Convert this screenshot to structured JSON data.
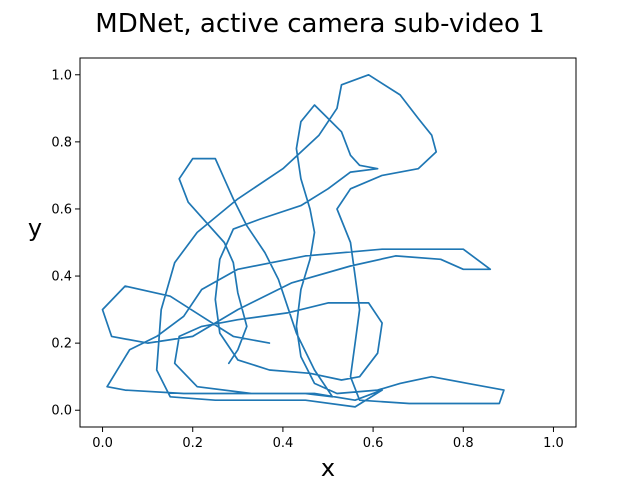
{
  "chart_data": {
    "type": "line",
    "title": "MDNet, active camera sub-video 1",
    "xlabel": "x",
    "ylabel": "y",
    "xlim": [
      -0.05,
      1.05
    ],
    "ylim": [
      -0.05,
      1.05
    ],
    "xticks": [
      "0.0",
      "0.2",
      "0.4",
      "0.6",
      "0.8",
      "1.0"
    ],
    "yticks": [
      "0.0",
      "0.2",
      "0.4",
      "0.6",
      "0.8",
      "1.0"
    ],
    "grid": false,
    "legend": "none",
    "series": [
      {
        "color": "#1f77b4",
        "points": [
          [
            0.37,
            0.2
          ],
          [
            0.29,
            0.22
          ],
          [
            0.22,
            0.28
          ],
          [
            0.15,
            0.34
          ],
          [
            0.05,
            0.37
          ],
          [
            0.0,
            0.3
          ],
          [
            0.02,
            0.22
          ],
          [
            0.1,
            0.2
          ],
          [
            0.2,
            0.22
          ],
          [
            0.3,
            0.3
          ],
          [
            0.42,
            0.38
          ],
          [
            0.55,
            0.43
          ],
          [
            0.65,
            0.46
          ],
          [
            0.75,
            0.45
          ],
          [
            0.8,
            0.42
          ],
          [
            0.86,
            0.42
          ],
          [
            0.8,
            0.48
          ],
          [
            0.62,
            0.48
          ],
          [
            0.45,
            0.46
          ],
          [
            0.3,
            0.42
          ],
          [
            0.22,
            0.36
          ],
          [
            0.18,
            0.28
          ],
          [
            0.12,
            0.22
          ],
          [
            0.06,
            0.18
          ],
          [
            0.01,
            0.07
          ],
          [
            0.05,
            0.06
          ],
          [
            0.18,
            0.05
          ],
          [
            0.33,
            0.05
          ],
          [
            0.47,
            0.05
          ],
          [
            0.56,
            0.03
          ],
          [
            0.62,
            0.06
          ],
          [
            0.56,
            0.01
          ],
          [
            0.45,
            0.03
          ],
          [
            0.33,
            0.03
          ],
          [
            0.25,
            0.03
          ],
          [
            0.15,
            0.04
          ],
          [
            0.12,
            0.12
          ],
          [
            0.13,
            0.3
          ],
          [
            0.16,
            0.44
          ],
          [
            0.21,
            0.53
          ],
          [
            0.3,
            0.63
          ],
          [
            0.4,
            0.72
          ],
          [
            0.48,
            0.82
          ],
          [
            0.52,
            0.9
          ],
          [
            0.53,
            0.97
          ],
          [
            0.59,
            1.0
          ],
          [
            0.66,
            0.94
          ],
          [
            0.7,
            0.87
          ],
          [
            0.73,
            0.82
          ],
          [
            0.74,
            0.77
          ],
          [
            0.7,
            0.72
          ],
          [
            0.62,
            0.7
          ],
          [
            0.55,
            0.66
          ],
          [
            0.52,
            0.6
          ],
          [
            0.55,
            0.5
          ],
          [
            0.56,
            0.4
          ],
          [
            0.57,
            0.3
          ],
          [
            0.56,
            0.2
          ],
          [
            0.55,
            0.1
          ],
          [
            0.57,
            0.03
          ],
          [
            0.68,
            0.02
          ],
          [
            0.8,
            0.02
          ],
          [
            0.88,
            0.02
          ],
          [
            0.89,
            0.06
          ],
          [
            0.81,
            0.08
          ],
          [
            0.73,
            0.1
          ],
          [
            0.66,
            0.08
          ],
          [
            0.61,
            0.06
          ],
          [
            0.52,
            0.05
          ],
          [
            0.47,
            0.08
          ],
          [
            0.44,
            0.16
          ],
          [
            0.43,
            0.25
          ],
          [
            0.44,
            0.36
          ],
          [
            0.46,
            0.45
          ],
          [
            0.47,
            0.53
          ],
          [
            0.46,
            0.6
          ],
          [
            0.44,
            0.69
          ],
          [
            0.43,
            0.78
          ],
          [
            0.44,
            0.86
          ],
          [
            0.47,
            0.91
          ],
          [
            0.5,
            0.87
          ],
          [
            0.53,
            0.83
          ],
          [
            0.55,
            0.76
          ],
          [
            0.57,
            0.73
          ],
          [
            0.61,
            0.72
          ],
          [
            0.55,
            0.71
          ],
          [
            0.5,
            0.66
          ],
          [
            0.44,
            0.61
          ],
          [
            0.35,
            0.57
          ],
          [
            0.29,
            0.54
          ],
          [
            0.26,
            0.45
          ],
          [
            0.25,
            0.33
          ],
          [
            0.26,
            0.23
          ],
          [
            0.3,
            0.15
          ],
          [
            0.37,
            0.12
          ],
          [
            0.46,
            0.11
          ],
          [
            0.53,
            0.09
          ],
          [
            0.57,
            0.1
          ],
          [
            0.61,
            0.17
          ],
          [
            0.62,
            0.26
          ],
          [
            0.59,
            0.32
          ],
          [
            0.5,
            0.32
          ],
          [
            0.41,
            0.29
          ],
          [
            0.3,
            0.27
          ],
          [
            0.22,
            0.25
          ],
          [
            0.17,
            0.22
          ],
          [
            0.16,
            0.14
          ],
          [
            0.21,
            0.07
          ],
          [
            0.33,
            0.05
          ],
          [
            0.45,
            0.05
          ],
          [
            0.51,
            0.04
          ],
          [
            0.47,
            0.12
          ],
          [
            0.43,
            0.23
          ],
          [
            0.41,
            0.31
          ],
          [
            0.39,
            0.39
          ],
          [
            0.36,
            0.47
          ],
          [
            0.32,
            0.55
          ],
          [
            0.29,
            0.63
          ],
          [
            0.27,
            0.69
          ],
          [
            0.25,
            0.75
          ],
          [
            0.2,
            0.75
          ],
          [
            0.17,
            0.69
          ],
          [
            0.19,
            0.62
          ],
          [
            0.23,
            0.56
          ],
          [
            0.27,
            0.5
          ],
          [
            0.29,
            0.44
          ],
          [
            0.3,
            0.35
          ],
          [
            0.32,
            0.25
          ],
          [
            0.3,
            0.18
          ],
          [
            0.28,
            0.14
          ]
        ]
      }
    ]
  }
}
